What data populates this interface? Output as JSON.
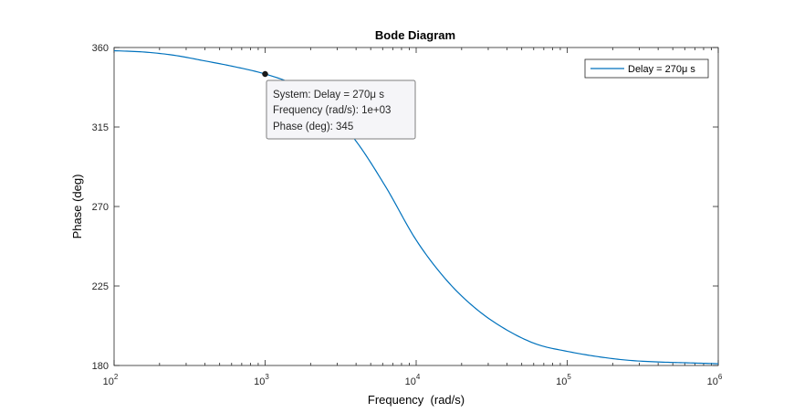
{
  "chart_data": {
    "type": "line",
    "title": "Bode Diagram",
    "xlabel": "Frequency  (rad/s)",
    "ylabel": "Phase (deg)",
    "xscale": "log",
    "xlim": [
      100,
      1000000
    ],
    "ylim": [
      180,
      360
    ],
    "x_ticks": [
      {
        "base": "10",
        "exp": "2"
      },
      {
        "base": "10",
        "exp": "3"
      },
      {
        "base": "10",
        "exp": "4"
      },
      {
        "base": "10",
        "exp": "5"
      },
      {
        "base": "10",
        "exp": "6"
      }
    ],
    "y_ticks": [
      "360",
      "315",
      "270",
      "225",
      "180"
    ],
    "grid": false,
    "legend_position": "top-right",
    "series": [
      {
        "name": "Delay = 270μ s",
        "color": "#0072BD",
        "x": [
          100,
          160,
          250,
          400,
          630,
          1000,
          1600,
          2500,
          4000,
          6300,
          10000,
          16000,
          25000,
          40000,
          63000,
          100000,
          160000,
          250000,
          400000,
          630000,
          1000000
        ],
        "y": [
          358.2,
          357.4,
          355.6,
          352.4,
          349.1,
          345.0,
          338.5,
          327.0,
          307.0,
          281.0,
          251.0,
          228.0,
          212.0,
          200.0,
          192.0,
          188.0,
          185.0,
          183.0,
          182.0,
          181.5,
          181.0
        ]
      }
    ],
    "datatip": {
      "point": {
        "x": 1000,
        "y": 345
      },
      "line1": "System: Delay = 270μ s",
      "line2": "Frequency (rad/s): 1e+03",
      "line3": "Phase (deg): 345"
    }
  }
}
